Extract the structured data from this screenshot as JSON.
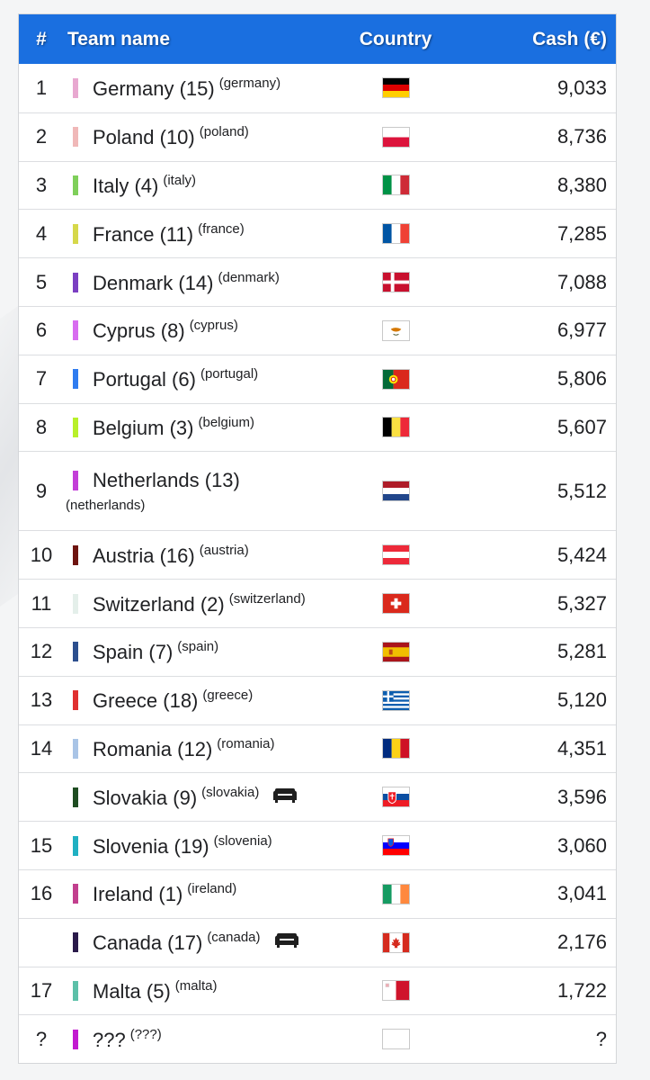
{
  "header": {
    "num": "#",
    "name": "Team name",
    "country": "Country",
    "cash": "Cash (€)"
  },
  "rows": [
    {
      "rank": "1",
      "team": "Germany (15)",
      "tag": "(germany)",
      "cash": "9,033",
      "color": "#e8a8d0",
      "flag": "germany-flag"
    },
    {
      "rank": "2",
      "team": "Poland (10)",
      "tag": "(poland)",
      "cash": "8,736",
      "color": "#f0b8b8",
      "flag": "poland-flag"
    },
    {
      "rank": "3",
      "team": "Italy (4)",
      "tag": "(italy)",
      "cash": "8,380",
      "color": "#7fcf5a",
      "flag": "italy-flag"
    },
    {
      "rank": "4",
      "team": "France (11)",
      "tag": "(france)",
      "cash": "7,285",
      "color": "#d6d84a",
      "flag": "france-flag"
    },
    {
      "rank": "5",
      "team": "Denmark (14)",
      "tag": "(denmark)",
      "cash": "7,088",
      "color": "#7b3fc2",
      "flag": "denmark-flag"
    },
    {
      "rank": "6",
      "team": "Cyprus (8)",
      "tag": "(cyprus)",
      "cash": "6,977",
      "color": "#d86cf0",
      "flag": "cyprus-flag"
    },
    {
      "rank": "7",
      "team": "Portugal (6)",
      "tag": "(portugal)",
      "cash": "5,806",
      "color": "#2f7cf0",
      "flag": "portugal-flag"
    },
    {
      "rank": "8",
      "team": "Belgium (3)",
      "tag": "(belgium)",
      "cash": "5,607",
      "color": "#b8f02a",
      "flag": "belgium-flag"
    },
    {
      "rank": "9",
      "team": "Netherlands (13)",
      "tag": "(netherlands)",
      "cash": "5,512",
      "color": "#c33ed8",
      "flag": "netherlands-flag"
    },
    {
      "rank": "10",
      "team": "Austria (16)",
      "tag": "(austria)",
      "cash": "5,424",
      "color": "#6e1410",
      "flag": "austria-flag"
    },
    {
      "rank": "11",
      "team": "Switzerland (2)",
      "tag": "(switzerland)",
      "cash": "5,327",
      "color": "#e4efea",
      "flag": "switzerland-flag"
    },
    {
      "rank": "12",
      "team": "Spain (7)",
      "tag": "(spain)",
      "cash": "5,281",
      "color": "#2c4f8e",
      "flag": "spain-flag"
    },
    {
      "rank": "13",
      "team": "Greece (18)",
      "tag": "(greece)",
      "cash": "5,120",
      "color": "#e03030",
      "flag": "greece-flag"
    },
    {
      "rank": "14",
      "team": "Romania (12)",
      "tag": "(romania)",
      "cash": "4,351",
      "color": "#a9c4e6",
      "flag": "romania-flag"
    },
    {
      "rank": "",
      "team": "Slovakia (9)",
      "tag": "(slovakia)",
      "cash": "3,596",
      "color": "#1f4d22",
      "flag": "slovakia-flag",
      "couch": true
    },
    {
      "rank": "15",
      "team": "Slovenia (19)",
      "tag": "(slovenia)",
      "cash": "3,060",
      "color": "#20b0c2",
      "flag": "slovenia-flag"
    },
    {
      "rank": "16",
      "team": "Ireland (1)",
      "tag": "(ireland)",
      "cash": "3,041",
      "color": "#c23f8e",
      "flag": "ireland-flag"
    },
    {
      "rank": "",
      "team": "Canada (17)",
      "tag": "(canada)",
      "cash": "2,176",
      "color": "#2a1a4a",
      "flag": "canada-flag",
      "couch": true
    },
    {
      "rank": "17",
      "team": "Malta (5)",
      "tag": "(malta)",
      "cash": "1,722",
      "color": "#5cc0a8",
      "flag": "malta-flag"
    },
    {
      "rank": "?",
      "team": "???",
      "tag": "(???)",
      "cash": "?",
      "color": "#c21ad0",
      "flag": "blank-flag"
    }
  ]
}
